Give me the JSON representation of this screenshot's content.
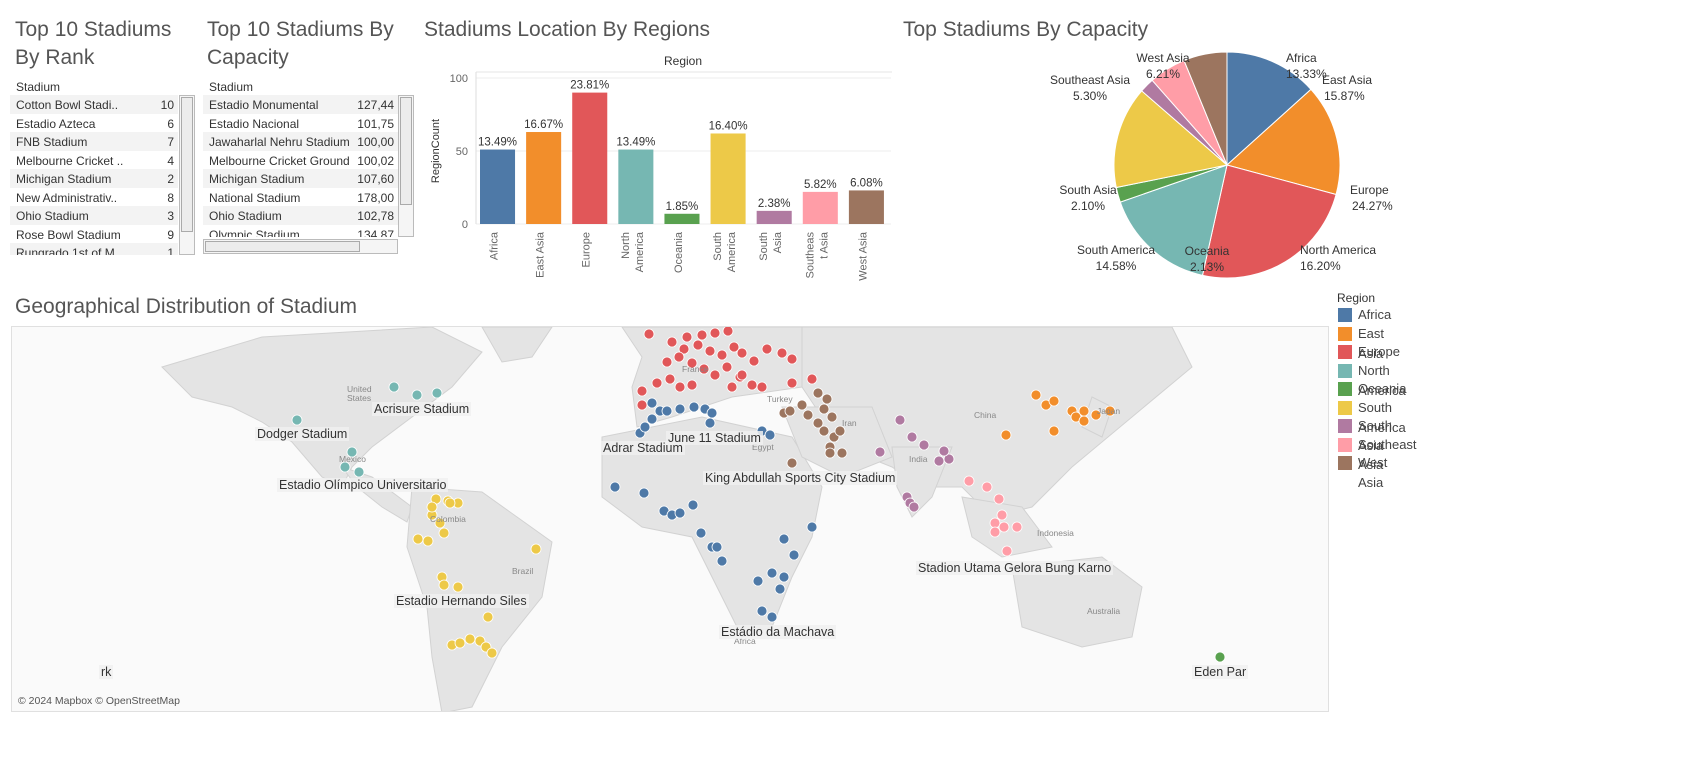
{
  "titles": {
    "rank_table": "Top 10 Stadiums\nBy Rank",
    "capacity_table": "Top 10 Stadiums By\nCapacity",
    "bar_chart": "Stadiums Location By Regions",
    "pie_chart": "Top Stadiums By Capacity",
    "map": "Geographical Distribution of Stadium"
  },
  "rank_table": {
    "header": "Stadium",
    "rows": [
      {
        "name": "Cotton Bowl Stadi..",
        "value": "10"
      },
      {
        "name": "Estadio Azteca",
        "value": "6"
      },
      {
        "name": "FNB Stadium",
        "value": "7"
      },
      {
        "name": "Melbourne Cricket ..",
        "value": "4"
      },
      {
        "name": "Michigan Stadium",
        "value": "2"
      },
      {
        "name": "New Administrativ..",
        "value": "8"
      },
      {
        "name": "Ohio Stadium",
        "value": "3"
      },
      {
        "name": "Rose Bowl Stadium",
        "value": "9"
      },
      {
        "name": "Rungrado 1st of M..",
        "value": "1"
      }
    ]
  },
  "capacity_table": {
    "header": "Stadium",
    "rows": [
      {
        "name": "Estadio Monumental",
        "value": "127,44"
      },
      {
        "name": "Estadio Nacional",
        "value": "101,75"
      },
      {
        "name": "Jawaharlal Nehru Stadium",
        "value": "100,00"
      },
      {
        "name": "Melbourne Cricket Ground",
        "value": "100,02"
      },
      {
        "name": "Michigan Stadium",
        "value": "107,60"
      },
      {
        "name": "National Stadium",
        "value": "178,00"
      },
      {
        "name": "Ohio Stadium",
        "value": "102,78"
      },
      {
        "name": "Olympic Stadium",
        "value": "134,87"
      }
    ]
  },
  "colors": {
    "Africa": "#4e79a7",
    "East Asia": "#f28e2b",
    "Europe": "#e15759",
    "North America": "#76b7b2",
    "Oceania": "#59a14f",
    "South America": "#edc948",
    "South Asia": "#b07aa1",
    "Southeast Asia": "#ff9da7",
    "West Asia": "#9c755f"
  },
  "chart_data": [
    {
      "type": "bar",
      "title": "Stadiums Location By Regions",
      "column_header": "Region",
      "ylabel": "RegionCount",
      "ylim": [
        0,
        100
      ],
      "yticks": [
        0,
        50,
        100
      ],
      "categories": [
        "Africa",
        "East Asia",
        "Europe",
        "North America",
        "Oceania",
        "South America",
        "South Asia",
        "Southeast Asia",
        "West Asia"
      ],
      "tick_labels": [
        [
          "Africa"
        ],
        [
          "East Asia"
        ],
        [
          "Europe"
        ],
        [
          "North",
          "America"
        ],
        [
          "Oceania"
        ],
        [
          "South",
          "America"
        ],
        [
          "South",
          "Asia"
        ],
        [
          "Southeas",
          "t Asia"
        ],
        [
          "West Asia"
        ]
      ],
      "values": [
        51,
        63,
        90,
        51,
        7,
        62,
        9,
        22,
        23
      ],
      "labels": [
        "13.49%",
        "16.67%",
        "23.81%",
        "13.49%",
        "1.85%",
        "16.40%",
        "2.38%",
        "5.82%",
        "6.08%"
      ]
    },
    {
      "type": "pie",
      "title": "Top Stadiums By Capacity",
      "slices": [
        {
          "name": "Africa",
          "label": "13.33%",
          "value": 13.33
        },
        {
          "name": "East Asia",
          "label": "15.87%",
          "value": 15.87
        },
        {
          "name": "Europe",
          "label": "24.27%",
          "value": 24.27
        },
        {
          "name": "North America",
          "label": "16.20%",
          "value": 16.2
        },
        {
          "name": "Oceania",
          "label": "2.13%",
          "value": 2.13
        },
        {
          "name": "South America",
          "label": "14.58%",
          "value": 14.58
        },
        {
          "name": "South Asia",
          "label": "2.10%",
          "value": 2.1
        },
        {
          "name": "Southeast Asia",
          "label": "5.30%",
          "value": 5.3
        },
        {
          "name": "West Asia",
          "label": "6.21%",
          "value": 6.21
        }
      ]
    }
  ],
  "legend": {
    "title": "Region",
    "items": [
      "Africa",
      "East Asia",
      "Europe",
      "North America",
      "Oceania",
      "South America",
      "South Asia",
      "Southeast Asia",
      "West Asia"
    ]
  },
  "map": {
    "attribution": "© 2024 Mapbox © OpenStreetMap",
    "country_labels": [
      "United States",
      "Mexico",
      "Colombia",
      "Brazil",
      "France",
      "Turkey",
      "Egypt",
      "Iran",
      "India",
      "China",
      "Japan",
      "Indonesia",
      "Australia",
      "Africa"
    ],
    "stadium_labels": [
      "Acrisure Stadium",
      "Dodger Stadium",
      "Estadio Olímpico Universitario",
      "Adrar Stadium",
      "June 11 Stadium",
      "King Abdullah Sports City Stadium",
      "Stadion Utama Gelora Bung Karno",
      "Estadio Hernando Siles",
      "Estádio da Machava",
      "rk",
      "Eden Par"
    ]
  }
}
